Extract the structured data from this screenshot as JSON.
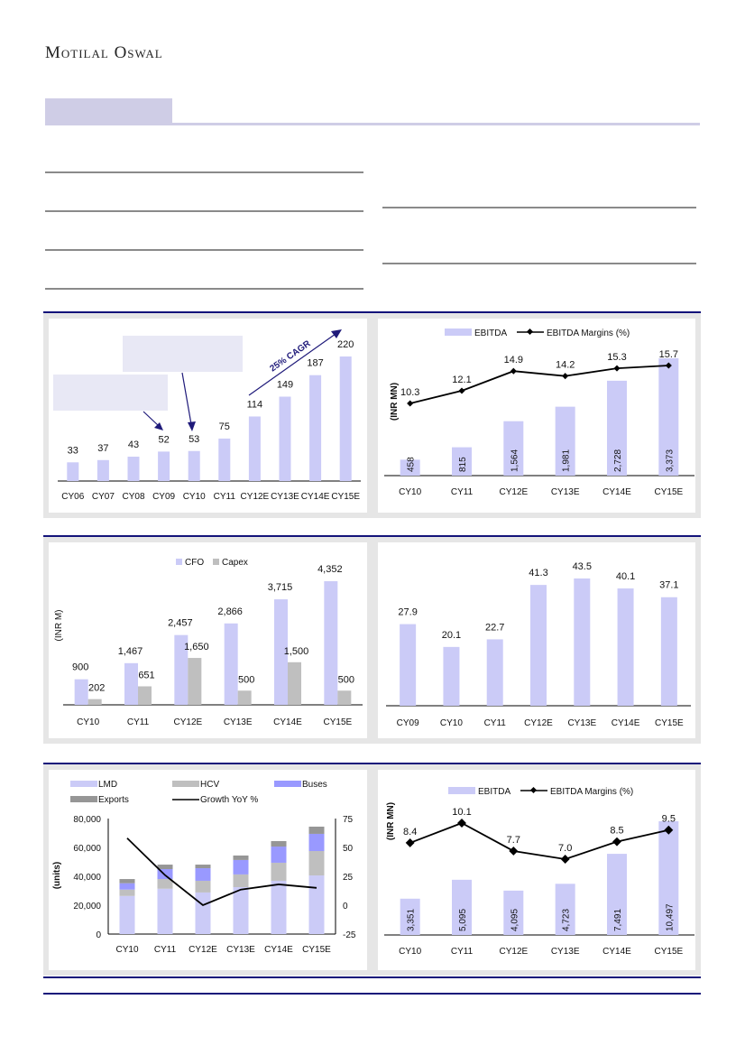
{
  "header": {
    "logo_text": "Motilal Oswal"
  },
  "colors": {
    "bar_primary": "#cbcbf7",
    "bar_grey": "#bfbfbf",
    "bar_buses": "#9999ff",
    "bar_exports": "#969696",
    "line": "#000000",
    "arrow": "#1f1a7a",
    "rule_navy": "#13137a",
    "section_accent": "#cfcde6",
    "panel_border": "#e6e6e6"
  },
  "chart_data": [
    {
      "id": "revenue-growth",
      "type": "bar",
      "title": "",
      "categories": [
        "CY06",
        "CY07",
        "CY08",
        "CY09",
        "CY10",
        "CY11",
        "CY12E",
        "CY13E",
        "CY14E",
        "CY15E"
      ],
      "values": [
        33,
        37,
        43,
        52,
        53,
        75,
        114,
        149,
        187,
        220
      ],
      "data_labels": [
        "33",
        "37",
        "43",
        "52",
        "53",
        "75",
        "114",
        "149",
        "187",
        "220"
      ],
      "annotations": [
        {
          "text": "25% CAGR",
          "from": "CY12E",
          "to": "CY15E"
        }
      ],
      "xlabel": "",
      "ylabel": "",
      "ylim": [
        0,
        240
      ],
      "grid": false,
      "legend": "none"
    },
    {
      "id": "ebitda-margins-1",
      "type": "bar",
      "categories": [
        "CY10",
        "CY11",
        "CY12E",
        "CY13E",
        "CY14E",
        "CY15E"
      ],
      "series": [
        {
          "name": "EBITDA",
          "kind": "bar",
          "values": [
            458,
            815,
            1564,
            1981,
            2728,
            3373
          ],
          "labels": [
            "458",
            "815",
            "1,564",
            "1,981",
            "2,728",
            "3,373"
          ]
        },
        {
          "name": "EBITDA Margins (%)",
          "kind": "line",
          "values": [
            10.3,
            12.1,
            14.9,
            14.2,
            15.3,
            15.7
          ],
          "labels": [
            "10.3",
            "12.1",
            "14.9",
            "14.2",
            "15.3",
            "15.7"
          ]
        }
      ],
      "ylabel": "(INR MN)",
      "legend": "top-center"
    },
    {
      "id": "cfo-capex",
      "type": "bar",
      "categories": [
        "CY10",
        "CY11",
        "CY12E",
        "CY13E",
        "CY14E",
        "CY15E"
      ],
      "series": [
        {
          "name": "CFO",
          "values": [
            900,
            1467,
            2457,
            2866,
            3715,
            4352
          ],
          "labels": [
            "900",
            "1,467",
            "2,457",
            "2,866",
            "3,715",
            "4,352"
          ]
        },
        {
          "name": "Capex",
          "values": [
            202,
            651,
            1650,
            500,
            1500,
            500
          ],
          "labels": [
            "202",
            "651",
            "1,650",
            "500",
            "1,500",
            "500"
          ]
        }
      ],
      "ylabel": "(INR M)",
      "ylim": [
        0,
        5000
      ],
      "legend": "top-center"
    },
    {
      "id": "ratio-bars",
      "type": "bar",
      "categories": [
        "CY09",
        "CY10",
        "CY11",
        "CY12E",
        "CY13E",
        "CY14E",
        "CY15E"
      ],
      "values": [
        27.9,
        20.1,
        22.7,
        41.3,
        43.5,
        40.1,
        37.1
      ],
      "data_labels": [
        "27.9",
        "20.1",
        "22.7",
        "41.3",
        "43.5",
        "40.1",
        "37.1"
      ],
      "ylim": [
        0,
        50
      ],
      "legend": "none"
    },
    {
      "id": "volume-mix",
      "type": "bar",
      "stacked": true,
      "categories": [
        "CY10",
        "CY11",
        "CY12E",
        "CY13E",
        "CY14E",
        "CY15E"
      ],
      "series": [
        {
          "name": "LMD",
          "values": [
            26400,
            31400,
            28800,
            32500,
            36900,
            40600
          ]
        },
        {
          "name": "HCV",
          "values": [
            4400,
            6700,
            8100,
            8800,
            12500,
            16900
          ]
        },
        {
          "name": "Buses",
          "values": [
            4400,
            6900,
            8700,
            10000,
            11200,
            11900
          ]
        },
        {
          "name": "Exports",
          "values": [
            2900,
            3100,
            2500,
            3100,
            3800,
            5000
          ]
        },
        {
          "name": "Growth YoY %",
          "kind": "line",
          "axis": "right",
          "values": [
            58,
            26,
            0,
            13.5,
            18,
            15
          ]
        }
      ],
      "ylabel": "(units)",
      "ylim": [
        0,
        80000
      ],
      "y2lim": [
        -25,
        75
      ],
      "yticks": [
        "0",
        "20,000",
        "40,000",
        "60,000",
        "80,000"
      ],
      "y2ticks": [
        "-25",
        "0",
        "25",
        "50",
        "75"
      ],
      "legend": "top"
    },
    {
      "id": "ebitda-margins-2",
      "type": "bar",
      "categories": [
        "CY10",
        "CY11",
        "CY12E",
        "CY13E",
        "CY14E",
        "CY15E"
      ],
      "series": [
        {
          "name": "EBITDA",
          "kind": "bar",
          "values": [
            3351,
            5095,
            4095,
            4723,
            7491,
            10497
          ],
          "labels": [
            "3,351",
            "5,095",
            "4,095",
            "4,723",
            "7,491",
            "10,497"
          ]
        },
        {
          "name": "EBITDA Margins (%)",
          "kind": "line",
          "values": [
            8.4,
            10.1,
            7.7,
            7.0,
            8.5,
            9.5
          ],
          "labels": [
            "8.4",
            "10.1",
            "7.7",
            "7.0",
            "8.5",
            "9.5"
          ]
        }
      ],
      "ylabel": "(INR MN)",
      "legend": "top-center"
    }
  ]
}
